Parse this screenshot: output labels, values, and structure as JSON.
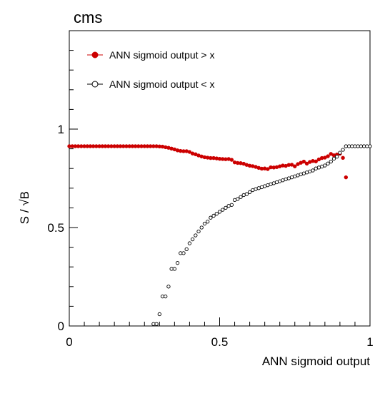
{
  "chart_data": {
    "type": "scatter",
    "title": "cms",
    "xlabel": "ANN sigmoid output",
    "ylabel": "S / √B",
    "xlim": [
      0,
      1
    ],
    "ylim": [
      0,
      1.5
    ],
    "xticks": [
      {
        "value": 0,
        "label": "0"
      },
      {
        "value": 0.5,
        "label": "0.5"
      },
      {
        "value": 1,
        "label": "1"
      }
    ],
    "yticks": [
      {
        "value": 0,
        "label": "0"
      },
      {
        "value": 0.5,
        "label": "0.5"
      },
      {
        "value": 1,
        "label": "1"
      }
    ],
    "grid": false,
    "legend_position": "top-left",
    "series": [
      {
        "name": "ANN sigmoid output > x",
        "marker": "filled-circle",
        "color": "#cc0000",
        "x": [
          0,
          0.01,
          0.02,
          0.03,
          0.04,
          0.05,
          0.06,
          0.07,
          0.08,
          0.09,
          0.1,
          0.11,
          0.12,
          0.13,
          0.14,
          0.15,
          0.16,
          0.17,
          0.18,
          0.19,
          0.2,
          0.21,
          0.22,
          0.23,
          0.24,
          0.25,
          0.26,
          0.27,
          0.28,
          0.29,
          0.3,
          0.31,
          0.32,
          0.33,
          0.34,
          0.35,
          0.36,
          0.37,
          0.38,
          0.39,
          0.4,
          0.41,
          0.42,
          0.43,
          0.44,
          0.45,
          0.46,
          0.47,
          0.48,
          0.49,
          0.5,
          0.51,
          0.52,
          0.53,
          0.54,
          0.55,
          0.56,
          0.57,
          0.58,
          0.59,
          0.6,
          0.61,
          0.62,
          0.63,
          0.64,
          0.65,
          0.66,
          0.67,
          0.68,
          0.69,
          0.7,
          0.71,
          0.72,
          0.73,
          0.74,
          0.75,
          0.76,
          0.77,
          0.78,
          0.79,
          0.8,
          0.81,
          0.82,
          0.83,
          0.84,
          0.85,
          0.86,
          0.87,
          0.88,
          0.89,
          0.9,
          0.91,
          0.92
        ],
        "y": [
          0.913,
          0.913,
          0.913,
          0.913,
          0.913,
          0.913,
          0.913,
          0.913,
          0.913,
          0.913,
          0.913,
          0.913,
          0.913,
          0.913,
          0.913,
          0.913,
          0.913,
          0.913,
          0.913,
          0.913,
          0.913,
          0.913,
          0.913,
          0.913,
          0.913,
          0.913,
          0.913,
          0.913,
          0.913,
          0.913,
          0.912,
          0.911,
          0.908,
          0.905,
          0.901,
          0.897,
          0.892,
          0.889,
          0.888,
          0.888,
          0.884,
          0.876,
          0.872,
          0.866,
          0.861,
          0.857,
          0.855,
          0.853,
          0.853,
          0.851,
          0.849,
          0.848,
          0.847,
          0.848,
          0.844,
          0.831,
          0.828,
          0.827,
          0.824,
          0.818,
          0.814,
          0.812,
          0.808,
          0.803,
          0.799,
          0.8,
          0.797,
          0.806,
          0.805,
          0.807,
          0.811,
          0.815,
          0.813,
          0.818,
          0.819,
          0.811,
          0.822,
          0.829,
          0.835,
          0.825,
          0.833,
          0.838,
          0.836,
          0.846,
          0.853,
          0.855,
          0.862,
          0.874,
          0.867,
          0.871,
          0.875,
          0.854,
          0.755
        ]
      },
      {
        "name": "ANN sigmoid output < x",
        "marker": "open-circle",
        "color": "#000000",
        "x": [
          0.28,
          0.29,
          0.3,
          0.31,
          0.32,
          0.33,
          0.34,
          0.35,
          0.36,
          0.37,
          0.38,
          0.39,
          0.4,
          0.41,
          0.42,
          0.43,
          0.44,
          0.45,
          0.46,
          0.47,
          0.48,
          0.49,
          0.5,
          0.51,
          0.52,
          0.53,
          0.54,
          0.55,
          0.56,
          0.57,
          0.58,
          0.59,
          0.6,
          0.61,
          0.62,
          0.63,
          0.64,
          0.65,
          0.66,
          0.67,
          0.68,
          0.69,
          0.7,
          0.71,
          0.72,
          0.73,
          0.74,
          0.75,
          0.76,
          0.77,
          0.78,
          0.79,
          0.8,
          0.81,
          0.82,
          0.83,
          0.84,
          0.85,
          0.86,
          0.87,
          0.88,
          0.89,
          0.9,
          0.91,
          0.92,
          0.93,
          0.94,
          0.95,
          0.96,
          0.97,
          0.98,
          0.99,
          1.0
        ],
        "y": [
          0.01,
          0.01,
          0.06,
          0.15,
          0.15,
          0.2,
          0.29,
          0.29,
          0.32,
          0.37,
          0.37,
          0.39,
          0.42,
          0.44,
          0.46,
          0.48,
          0.5,
          0.52,
          0.53,
          0.55,
          0.56,
          0.57,
          0.58,
          0.59,
          0.6,
          0.61,
          0.615,
          0.64,
          0.645,
          0.655,
          0.665,
          0.67,
          0.68,
          0.69,
          0.695,
          0.7,
          0.705,
          0.71,
          0.715,
          0.72,
          0.725,
          0.73,
          0.735,
          0.74,
          0.745,
          0.75,
          0.755,
          0.76,
          0.765,
          0.77,
          0.775,
          0.78,
          0.785,
          0.79,
          0.8,
          0.805,
          0.81,
          0.815,
          0.825,
          0.835,
          0.85,
          0.86,
          0.88,
          0.895,
          0.913,
          0.913,
          0.913,
          0.913,
          0.913,
          0.913,
          0.913,
          0.913,
          0.913
        ]
      }
    ]
  }
}
